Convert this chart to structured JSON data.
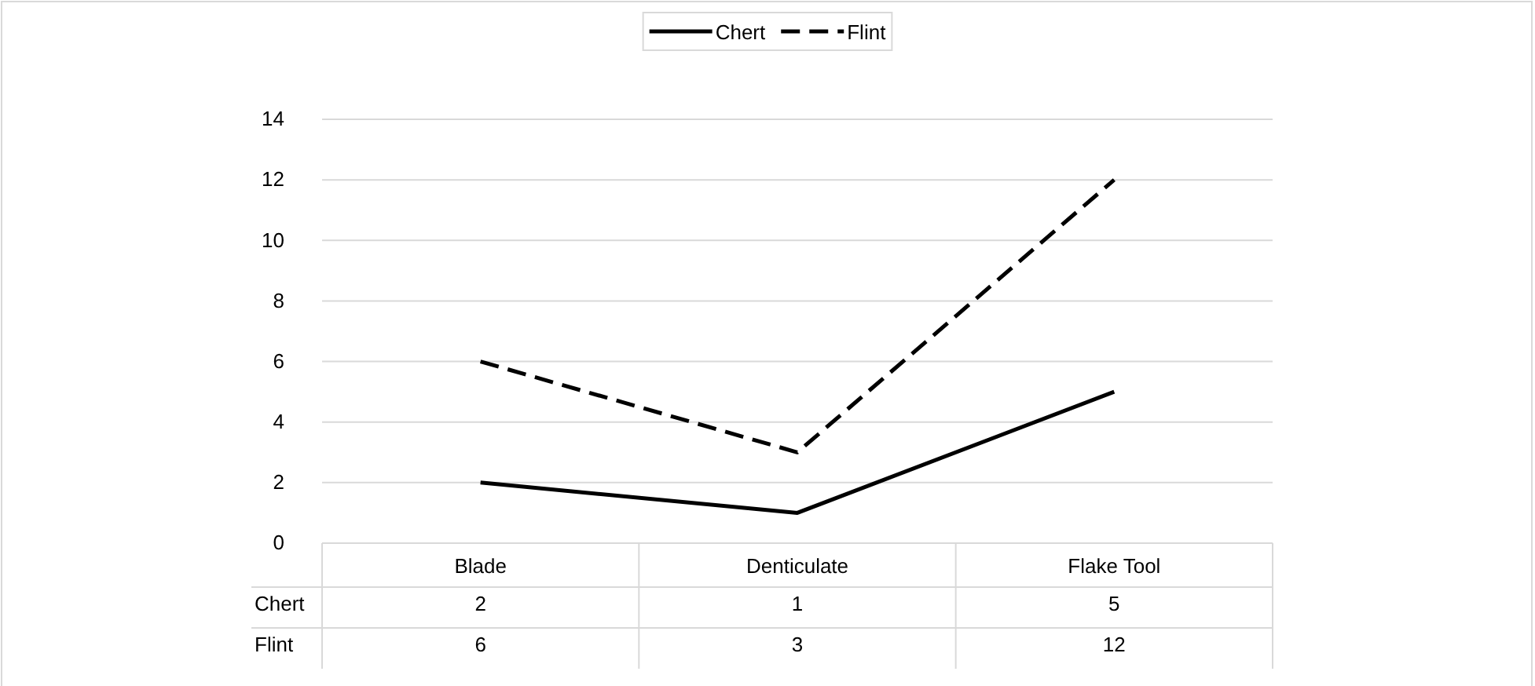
{
  "chart_data": {
    "type": "line",
    "categories": [
      "Blade",
      "Denticulate",
      "Flake Tool"
    ],
    "series": [
      {
        "name": "Chert",
        "color": "#000000",
        "line_style": "solid",
        "values": [
          2,
          1,
          5
        ]
      },
      {
        "name": "Flint",
        "color": "#000000",
        "line_style": "dashed",
        "values": [
          6,
          3,
          12
        ]
      }
    ],
    "ylim": [
      0,
      14
    ],
    "yticks": [
      0,
      2,
      4,
      6,
      8,
      10,
      12,
      14
    ],
    "grid": "y",
    "legend": "top",
    "data_labels": true,
    "marker": "none"
  }
}
